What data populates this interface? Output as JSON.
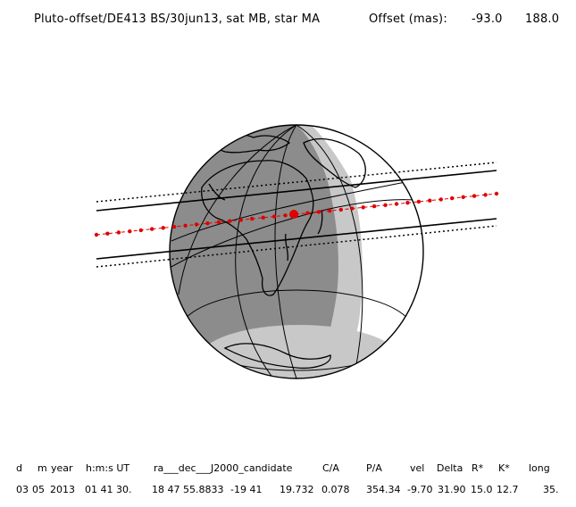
{
  "header": {
    "title": "Pluto-offset/DE413 BS/30jun13, sat MB, star MA",
    "offset_label": "Offset (mas):",
    "offset_ra": "-93.0",
    "offset_dec": "188.0"
  },
  "table": {
    "columns": [
      "d",
      "m",
      "year",
      "h:m:s UT",
      "ra___dec___J2000_candidate",
      "C/A",
      "P/A",
      "vel",
      "Delta",
      "R*",
      "K*",
      "long"
    ],
    "values": [
      "03",
      "05",
      "2013",
      "01 41 30.",
      "18 47 55.8833",
      "-19 41",
      "19.732",
      "0.078",
      "354.34",
      "-9.70",
      "31.90",
      "15.0",
      "12.7",
      "35."
    ]
  },
  "colors": {
    "night": "#8c8c8c",
    "twilight": "#c8c8c8",
    "day": "#ffffff",
    "track": "#e00000",
    "line": "#000000"
  }
}
